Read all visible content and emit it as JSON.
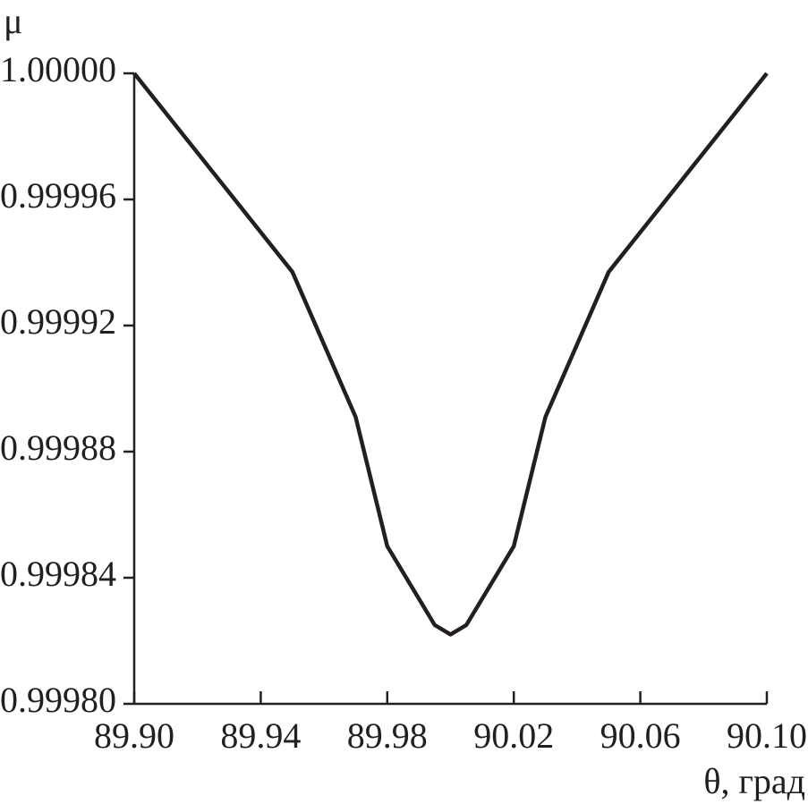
{
  "chart_data": {
    "type": "line",
    "y_label": "μ",
    "x_label": "θ, град",
    "x": [
      89.9,
      89.95,
      89.97,
      89.98,
      89.995,
      90.0,
      90.005,
      90.02,
      90.03,
      90.05,
      90.1
    ],
    "series": [
      {
        "color": "#231f20",
        "values": [
          1.0,
          0.999937,
          0.999891,
          0.99985,
          0.999825,
          0.999822,
          0.999825,
          0.99985,
          0.999891,
          0.999937,
          1.0
        ]
      }
    ],
    "xlim": [
      89.9,
      90.1
    ],
    "xticks": [
      {
        "value": 89.9,
        "label": "89.90"
      },
      89.94,
      89.98,
      90.02,
      90.06,
      {
        "value": 90.1,
        "label": "90.10"
      }
    ],
    "ylim": [
      0.9998,
      1.0
    ],
    "yticks": [
      {
        "value": 0.9998,
        "label": "0.99980"
      },
      0.99984,
      0.99988,
      0.99992,
      0.99996,
      {
        "value": 1.0,
        "label": "1.00000"
      }
    ]
  }
}
